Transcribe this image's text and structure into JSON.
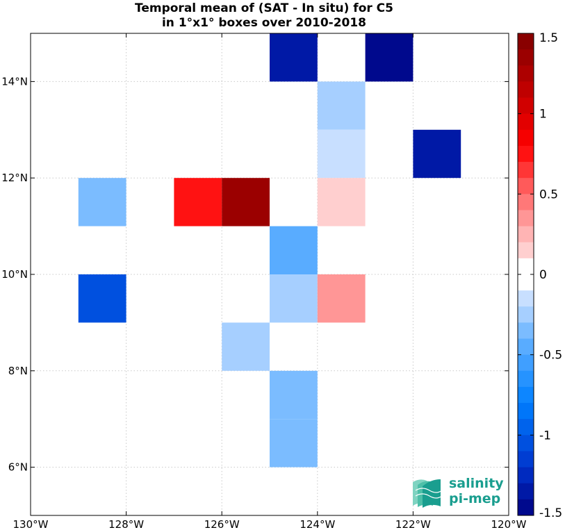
{
  "chart_data": {
    "type": "heatmap",
    "title_lines": [
      "Temporal mean of (SAT - In situ) for C5",
      "in 1°x1° boxes over 2010-2018"
    ],
    "xlabel": "",
    "ylabel": "",
    "xlim": [
      -130,
      -120
    ],
    "ylim": [
      5,
      15
    ],
    "x_ticks": [
      -130,
      -128,
      -126,
      -124,
      -122,
      -120
    ],
    "x_tick_labels": [
      "130°W",
      "128°W",
      "126°W",
      "124°W",
      "122°W",
      "120°W"
    ],
    "y_ticks": [
      6,
      8,
      10,
      12,
      14
    ],
    "y_tick_labels": [
      "6°N",
      "8°N",
      "10°N",
      "12°N",
      "14°N"
    ],
    "grid": true,
    "colorbar": {
      "range": [
        -1.5,
        1.5
      ],
      "levels": 30,
      "ticks": [
        1.5,
        1,
        0.5,
        0,
        -0.5,
        -1,
        -1.5
      ],
      "tick_labels": [
        "1.5",
        "1",
        "0.5",
        "0",
        "-0.5",
        "-1",
        "-1.5"
      ]
    },
    "cells": [
      {
        "lon_min": -125,
        "lat_min": 14,
        "value": -1.35
      },
      {
        "lon_min": -123,
        "lat_min": 14,
        "value": -1.45
      },
      {
        "lon_min": -124,
        "lat_min": 13,
        "value": -0.25
      },
      {
        "lon_min": -124,
        "lat_min": 12,
        "value": -0.1
      },
      {
        "lon_min": -122,
        "lat_min": 12,
        "value": -1.35
      },
      {
        "lon_min": -129,
        "lat_min": 11,
        "value": -0.3
      },
      {
        "lon_min": -127,
        "lat_min": 11,
        "value": 0.75
      },
      {
        "lon_min": -126,
        "lat_min": 11,
        "value": 1.4
      },
      {
        "lon_min": -124,
        "lat_min": 11,
        "value": 0.15
      },
      {
        "lon_min": -125,
        "lat_min": 10,
        "value": -0.45
      },
      {
        "lon_min": -129,
        "lat_min": 9,
        "value": -1.05
      },
      {
        "lon_min": -125,
        "lat_min": 9,
        "value": -0.25
      },
      {
        "lon_min": -124,
        "lat_min": 9,
        "value": 0.3
      },
      {
        "lon_min": -126,
        "lat_min": 8,
        "value": -0.25
      },
      {
        "lon_min": -125,
        "lat_min": 7,
        "value": -0.35
      },
      {
        "lon_min": -125,
        "lat_min": 6,
        "value": -0.35
      }
    ]
  },
  "logo": {
    "line1": "salinity",
    "line2": "pi-mep",
    "color": "#1a9e8f"
  }
}
